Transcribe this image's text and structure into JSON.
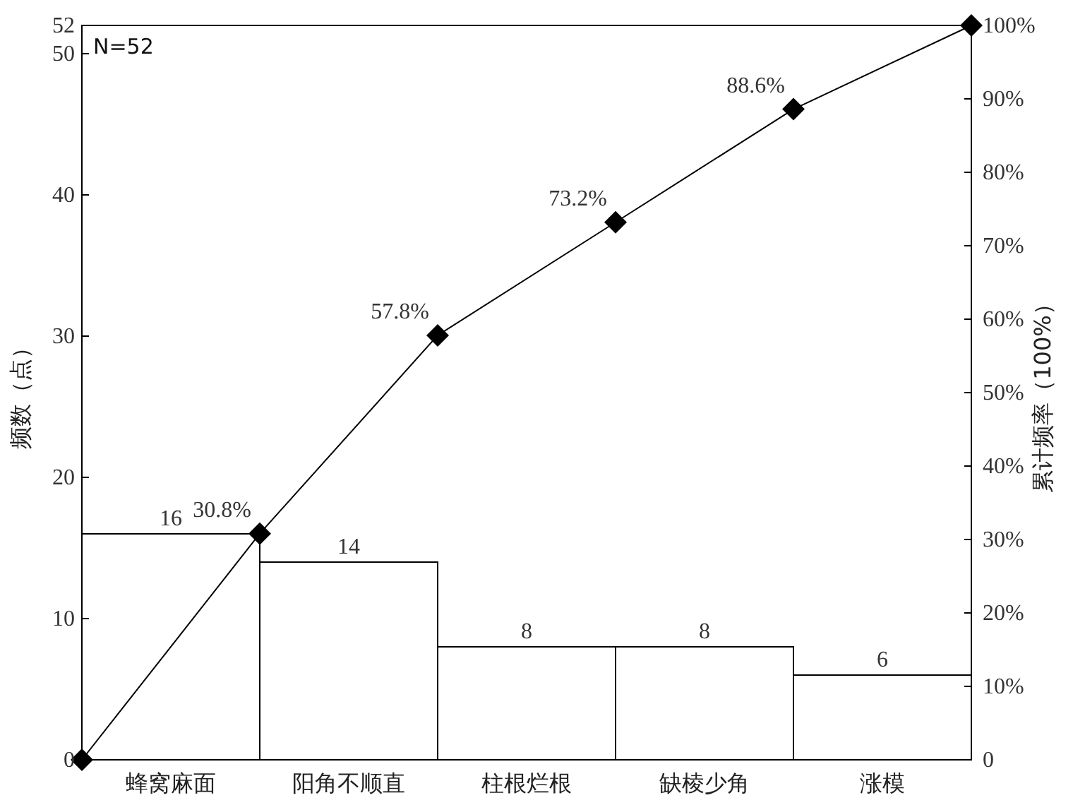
{
  "chart_data": {
    "type": "bar",
    "categories": [
      null,
      "蜂窝麻面",
      null,
      "阳角不顺直",
      null,
      "柱根烂根",
      null,
      "缺棱少角",
      null,
      "涨模",
      null
    ],
    "series": [
      {
        "color": "#ffffff",
        "values": [
          null,
          16,
          null,
          14,
          null,
          8,
          null,
          8,
          null,
          6,
          null
        ],
        "value_labels": [
          null,
          "16",
          null,
          "14",
          null,
          "8",
          null,
          "8",
          null,
          "6",
          null
        ]
      },
      {
        "type": "line",
        "axis": "y2",
        "color": "#000000",
        "marker": "diamond",
        "values": [
          0,
          null,
          30.8,
          null,
          57.8,
          null,
          73.2,
          null,
          88.6,
          null,
          100
        ],
        "value_labels": [
          null,
          null,
          "30.8%",
          null,
          "57.8%",
          null,
          "73.2%",
          null,
          "88.6%",
          null,
          null
        ]
      }
    ],
    "ylim": [
      0,
      52
    ],
    "yticks": [
      0,
      10,
      20,
      30,
      40,
      50,
      52
    ],
    "y2lim": [
      0,
      100
    ],
    "y2ticks": [
      0,
      {
        "value": 10,
        "label": "10%"
      },
      {
        "value": 20,
        "label": "20%"
      },
      {
        "value": 30,
        "label": "30%"
      },
      {
        "value": 40,
        "label": "40%"
      },
      {
        "value": 50,
        "label": "50%"
      },
      {
        "value": 60,
        "label": "60%"
      },
      {
        "value": 70,
        "label": "70%"
      },
      {
        "value": 80,
        "label": "80%"
      },
      {
        "value": 90,
        "label": "90%"
      },
      {
        "value": 100,
        "label": "100%"
      }
    ],
    "ylabel": "频数（点）",
    "y2label": "累计频率（100%）",
    "annotations": [
      "N=52"
    ]
  }
}
